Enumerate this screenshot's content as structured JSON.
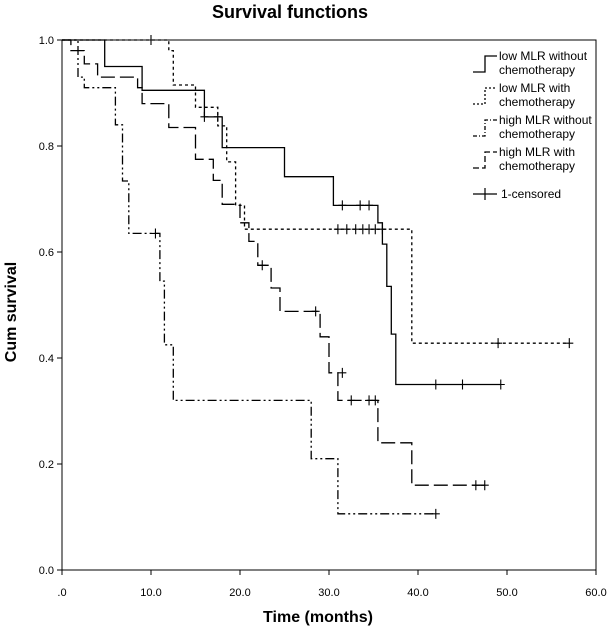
{
  "chart_data": {
    "type": "line",
    "step": true,
    "title": "Survival functions",
    "xlabel": "Time (months)",
    "ylabel": "Cum survival",
    "xlim": [
      0,
      60
    ],
    "ylim": [
      0,
      1.0
    ],
    "x_ticks": [
      ".0",
      "10.0",
      "20.0",
      "30.0",
      "40.0",
      "50.0",
      "60.0"
    ],
    "x_tick_values": [
      0,
      10,
      20,
      30,
      40,
      50,
      60
    ],
    "y_ticks": [
      "0.0",
      "0.2",
      "0.4",
      "0.6",
      "0.8",
      "1.0"
    ],
    "y_tick_values": [
      0.0,
      0.2,
      0.4,
      0.6,
      0.8,
      1.0
    ],
    "legend_position": "top-right",
    "legend": [
      {
        "line1": "low MLR without",
        "line2": "chemotherapy",
        "style": "solid"
      },
      {
        "line1": "low MLR with",
        "line2": "chemotherapy",
        "style": "dotted"
      },
      {
        "line1": "high MLR without",
        "line2": "chemotherapy",
        "style": "dashdotdot"
      },
      {
        "line1": "high MLR with",
        "line2": "chemotherapy",
        "style": "dashed"
      },
      {
        "line1": "1-censored",
        "line2": "",
        "style": "censor"
      }
    ],
    "series": [
      {
        "name": "low MLR without chemotherapy",
        "dash": "",
        "points": [
          [
            0,
            1.0
          ],
          [
            4.8,
            1.0
          ],
          [
            4.8,
            0.95
          ],
          [
            9.0,
            0.95
          ],
          [
            9.0,
            0.905
          ],
          [
            16.0,
            0.905
          ],
          [
            16.0,
            0.855
          ],
          [
            18.0,
            0.855
          ],
          [
            18.0,
            0.797
          ],
          [
            25.0,
            0.797
          ],
          [
            25.0,
            0.742
          ],
          [
            30.5,
            0.742
          ],
          [
            30.5,
            0.688
          ],
          [
            35.5,
            0.688
          ],
          [
            35.5,
            0.655
          ],
          [
            36.0,
            0.655
          ],
          [
            36.0,
            0.615
          ],
          [
            36.5,
            0.615
          ],
          [
            36.5,
            0.535
          ],
          [
            37.0,
            0.535
          ],
          [
            37.0,
            0.445
          ],
          [
            37.5,
            0.445
          ],
          [
            37.5,
            0.35
          ],
          [
            49.3,
            0.35
          ]
        ],
        "censored": [
          [
            31.5,
            0.688
          ],
          [
            33.5,
            0.688
          ],
          [
            34.5,
            0.688
          ],
          [
            42.0,
            0.35
          ],
          [
            45.0,
            0.35
          ],
          [
            49.3,
            0.35
          ]
        ]
      },
      {
        "name": "low MLR with chemotherapy",
        "dash": "3,3",
        "points": [
          [
            0,
            1.0
          ],
          [
            12.0,
            1.0
          ],
          [
            12.0,
            0.98
          ],
          [
            12.5,
            0.98
          ],
          [
            12.5,
            0.915
          ],
          [
            15.0,
            0.915
          ],
          [
            15.0,
            0.873
          ],
          [
            17.5,
            0.873
          ],
          [
            17.5,
            0.838
          ],
          [
            18.5,
            0.838
          ],
          [
            18.5,
            0.77
          ],
          [
            19.5,
            0.77
          ],
          [
            19.5,
            0.688
          ],
          [
            20.5,
            0.688
          ],
          [
            20.5,
            0.643
          ],
          [
            39.3,
            0.643
          ],
          [
            39.3,
            0.428
          ],
          [
            57.0,
            0.428
          ]
        ],
        "censored": [
          [
            10.0,
            1.0
          ],
          [
            31.0,
            0.643
          ],
          [
            32.0,
            0.643
          ],
          [
            33.0,
            0.643
          ],
          [
            33.8,
            0.643
          ],
          [
            34.5,
            0.643
          ],
          [
            35.2,
            0.643
          ],
          [
            36.0,
            0.643
          ],
          [
            49.0,
            0.428
          ],
          [
            57.0,
            0.428
          ]
        ]
      },
      {
        "name": "high MLR without chemotherapy",
        "dash": "9,3,2,3,2,3",
        "points": [
          [
            0,
            1.0
          ],
          [
            1.8,
            1.0
          ],
          [
            1.8,
            0.93
          ],
          [
            2.5,
            0.93
          ],
          [
            2.5,
            0.91
          ],
          [
            6.0,
            0.91
          ],
          [
            6.0,
            0.84
          ],
          [
            6.8,
            0.84
          ],
          [
            6.8,
            0.734
          ],
          [
            7.5,
            0.734
          ],
          [
            7.5,
            0.635
          ],
          [
            11.0,
            0.635
          ],
          [
            11.0,
            0.545
          ],
          [
            11.5,
            0.545
          ],
          [
            11.5,
            0.425
          ],
          [
            12.5,
            0.425
          ],
          [
            12.5,
            0.32
          ],
          [
            28.0,
            0.32
          ],
          [
            28.0,
            0.21
          ],
          [
            31.0,
            0.21
          ],
          [
            31.0,
            0.106
          ],
          [
            42.0,
            0.106
          ]
        ],
        "censored": [
          [
            10.5,
            0.635
          ],
          [
            42.0,
            0.106
          ]
        ]
      },
      {
        "name": "high MLR with chemotherapy",
        "dash": "14,5",
        "points": [
          [
            0,
            1.0
          ],
          [
            1.0,
            1.0
          ],
          [
            1.0,
            0.98
          ],
          [
            2.5,
            0.98
          ],
          [
            2.5,
            0.955
          ],
          [
            4.0,
            0.955
          ],
          [
            4.0,
            0.93
          ],
          [
            8.5,
            0.93
          ],
          [
            8.5,
            0.91
          ],
          [
            9.0,
            0.91
          ],
          [
            9.0,
            0.88
          ],
          [
            12.0,
            0.88
          ],
          [
            12.0,
            0.835
          ],
          [
            15.0,
            0.835
          ],
          [
            15.0,
            0.775
          ],
          [
            17.0,
            0.775
          ],
          [
            17.0,
            0.735
          ],
          [
            18.0,
            0.735
          ],
          [
            18.0,
            0.69
          ],
          [
            20.0,
            0.69
          ],
          [
            20.0,
            0.655
          ],
          [
            21.0,
            0.655
          ],
          [
            21.0,
            0.62
          ],
          [
            22.0,
            0.62
          ],
          [
            22.0,
            0.575
          ],
          [
            23.5,
            0.575
          ],
          [
            23.5,
            0.532
          ],
          [
            24.5,
            0.532
          ],
          [
            24.5,
            0.488
          ],
          [
            29.0,
            0.488
          ],
          [
            29.0,
            0.44
          ],
          [
            30.0,
            0.44
          ],
          [
            30.0,
            0.372
          ],
          [
            31.0,
            0.372
          ],
          [
            31.0,
            0.32
          ],
          [
            35.5,
            0.32
          ],
          [
            35.5,
            0.24
          ],
          [
            39.3,
            0.24
          ],
          [
            39.3,
            0.16
          ],
          [
            47.5,
            0.16
          ]
        ],
        "censored": [
          [
            16.0,
            0.855
          ],
          [
            17.5,
            0.855
          ],
          [
            22.5,
            0.575
          ],
          [
            28.5,
            0.488
          ],
          [
            31.5,
            0.372
          ],
          [
            32.5,
            0.32
          ],
          [
            34.5,
            0.32
          ],
          [
            35.2,
            0.32
          ],
          [
            46.5,
            0.16
          ],
          [
            47.5,
            0.16
          ]
        ]
      }
    ]
  }
}
